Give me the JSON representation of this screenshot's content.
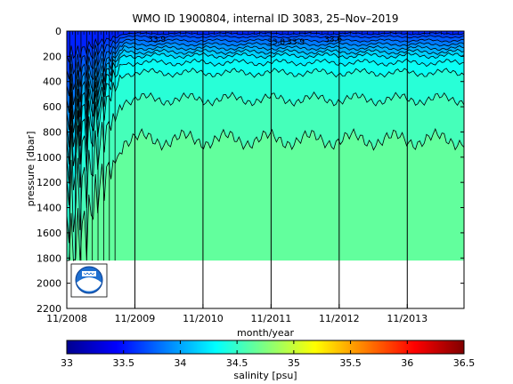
{
  "chart_data": {
    "type": "heatmap",
    "title": "WMO ID 1900804, internal ID 3083, 25–Nov–2019",
    "xlabel": "month/year",
    "ylabel": "pressure [dbar]",
    "x_tick_labels": [
      "11/2008",
      "11/2009",
      "11/2010",
      "11/2011",
      "11/2012",
      "11/2013"
    ],
    "x_tick_dates": [
      "2008-11",
      "2009-11",
      "2010-11",
      "2011-11",
      "2012-11",
      "2013-11"
    ],
    "x_range": [
      "2008-11",
      "2014-09"
    ],
    "y_ticks": [
      0,
      200,
      400,
      600,
      800,
      1000,
      1200,
      1400,
      1600,
      1800,
      2000,
      2200
    ],
    "y_range": [
      2200,
      0
    ],
    "y_reversed": true,
    "data_max_pressure": 1820,
    "grid": false,
    "colorbar": {
      "label": "salinity [psu]",
      "ticks": [
        33,
        33.5,
        34,
        34.5,
        35,
        35.5,
        36,
        36.5
      ],
      "range": [
        33,
        36.5
      ],
      "colormap": "jet"
    },
    "deep_profile_dates": [
      "2008-11",
      "2008-12",
      "2009-01",
      "2009-02",
      "2009-03",
      "2009-04",
      "2009-05",
      "2009-06",
      "2009-07"
    ],
    "vertical_lines_at": [
      "2009-11",
      "2010-11",
      "2011-11",
      "2012-11",
      "2013-11"
    ],
    "contour_levels": [
      33.6,
      33.7,
      33.8,
      33.9,
      34.0,
      34.1,
      34.2,
      34.3,
      34.4,
      34.5,
      34.6
    ],
    "contour_labels": [
      "33.9",
      "33.8",
      "33.9",
      "33.6"
    ],
    "series": [
      {
        "value": 33.6,
        "pressure": 20
      },
      {
        "value": 33.7,
        "pressure": 45
      },
      {
        "value": 33.8,
        "pressure": 75
      },
      {
        "value": 33.9,
        "pressure": 105
      },
      {
        "value": 34.0,
        "pressure": 135
      },
      {
        "value": 34.1,
        "pressure": 165
      },
      {
        "value": 34.2,
        "pressure": 195
      },
      {
        "value": 34.3,
        "pressure": 250
      },
      {
        "value": 34.4,
        "pressure": 330
      },
      {
        "value": 34.5,
        "pressure": 540
      },
      {
        "value": 34.6,
        "pressure": 860
      }
    ],
    "colors": {
      "background": "#ffffff",
      "axis": "#000000",
      "deep_fill": "#80ff80"
    },
    "logo": "noaa-logo"
  }
}
